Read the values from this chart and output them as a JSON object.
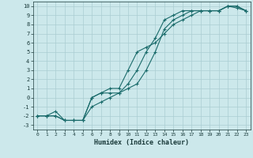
{
  "xlabel": "Humidex (Indice chaleur)",
  "bg_color": "#cce8eb",
  "grid_color": "#aacdd2",
  "line_color": "#1a6b6b",
  "xlim": [
    -0.5,
    23.5
  ],
  "ylim": [
    -3.5,
    10.5
  ],
  "xticks": [
    0,
    1,
    2,
    3,
    4,
    5,
    6,
    7,
    8,
    9,
    10,
    11,
    12,
    13,
    14,
    15,
    16,
    17,
    18,
    19,
    20,
    21,
    22,
    23
  ],
  "yticks": [
    -3,
    -2,
    -1,
    0,
    1,
    2,
    3,
    4,
    5,
    6,
    7,
    8,
    9,
    10
  ],
  "line1_x": [
    0,
    1,
    2,
    3,
    4,
    5,
    6,
    7,
    8,
    9,
    10,
    11,
    12,
    13,
    14,
    15,
    16,
    17,
    18,
    19,
    20,
    21,
    22,
    23
  ],
  "line1_y": [
    -2,
    -2,
    -2,
    -2.5,
    -2.5,
    -2.5,
    -1,
    -0.5,
    0,
    0.5,
    1.5,
    3.0,
    5.0,
    6.5,
    8.5,
    9.0,
    9.5,
    9.5,
    9.5,
    9.5,
    9.5,
    10,
    10,
    9.5
  ],
  "line2_x": [
    0,
    1,
    2,
    3,
    4,
    5,
    6,
    7,
    8,
    9,
    10,
    11,
    12,
    13,
    14,
    15,
    16,
    17,
    18,
    19,
    20,
    21,
    22,
    23
  ],
  "line2_y": [
    -2,
    -2,
    -1.5,
    -2.5,
    -2.5,
    -2.5,
    0,
    0.5,
    0.5,
    0.5,
    1.0,
    1.5,
    3.0,
    5.0,
    7.5,
    8.5,
    9.0,
    9.5,
    9.5,
    9.5,
    9.5,
    10,
    10,
    9.5
  ],
  "line3_x": [
    0,
    1,
    2,
    3,
    4,
    5,
    6,
    7,
    8,
    9,
    10,
    11,
    12,
    13,
    14,
    15,
    16,
    17,
    18,
    19,
    20,
    21,
    22,
    23
  ],
  "line3_y": [
    -2,
    -2,
    -2,
    -2.5,
    -2.5,
    -2.5,
    0,
    0.5,
    1.0,
    1.0,
    3.0,
    5.0,
    5.5,
    6.0,
    7.0,
    8.0,
    8.5,
    9.0,
    9.5,
    9.5,
    9.5,
    10,
    9.8,
    9.5
  ]
}
